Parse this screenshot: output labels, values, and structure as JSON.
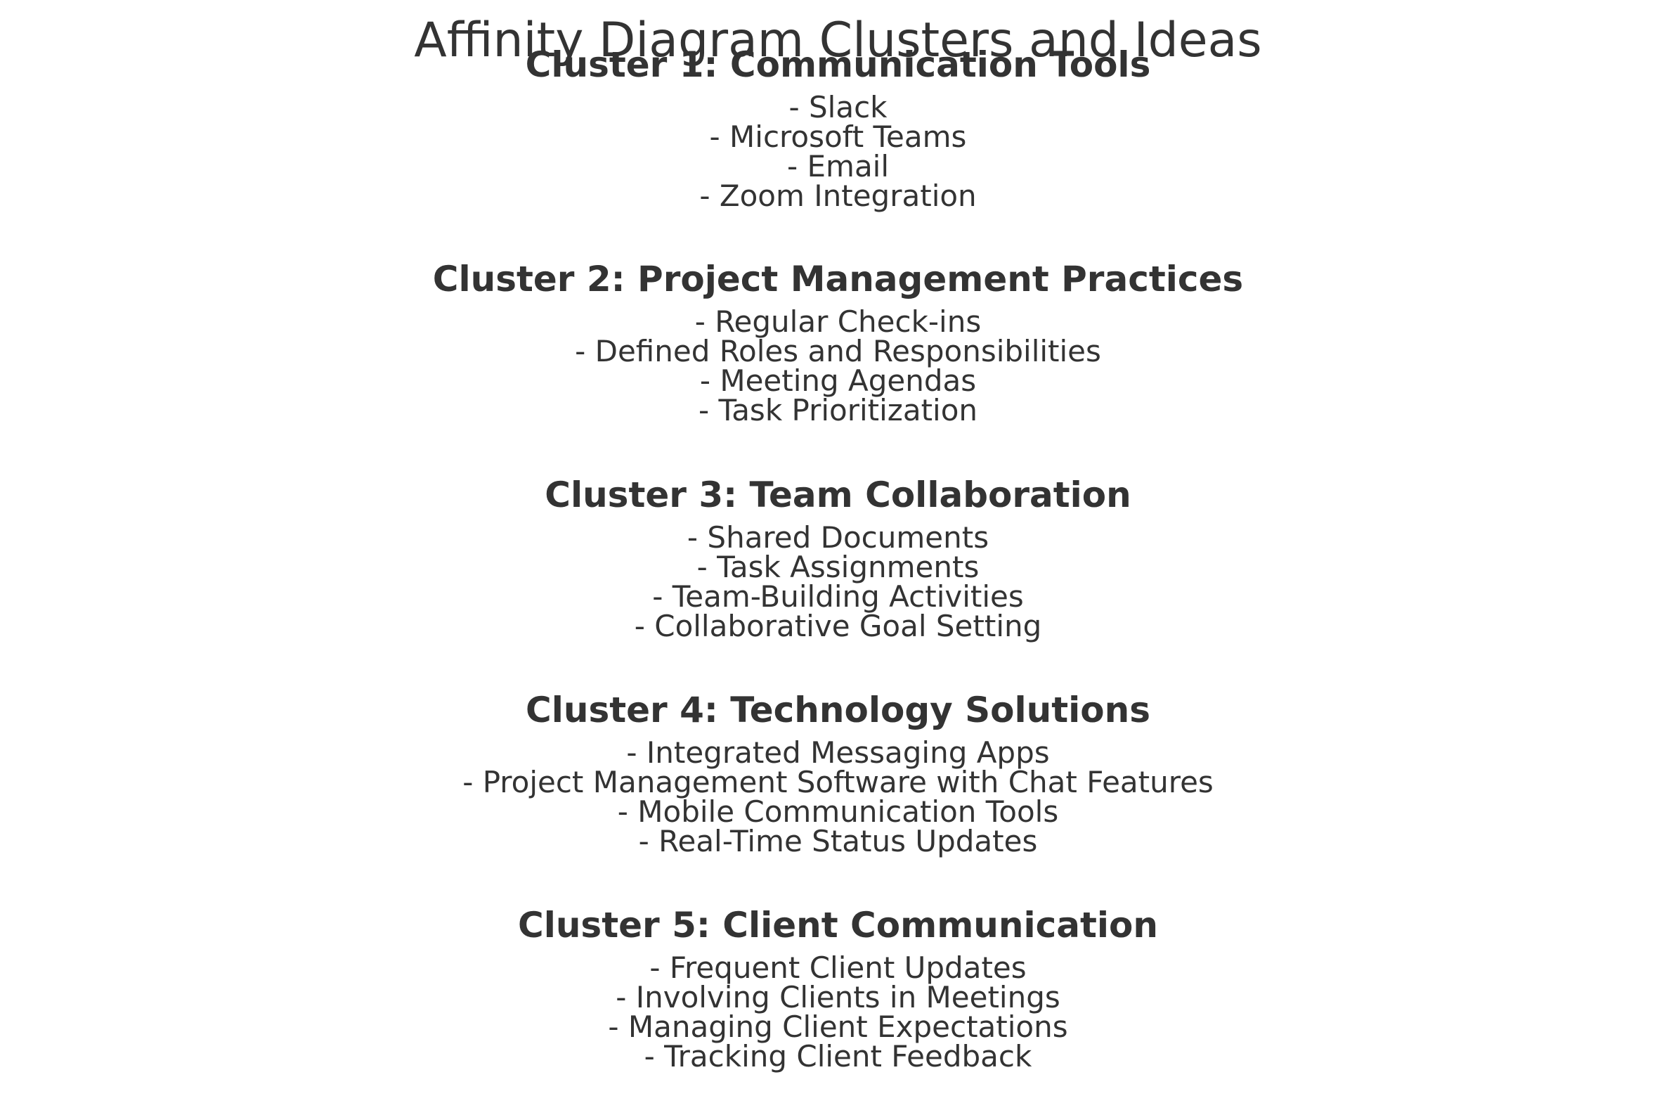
{
  "title": "Affinity Diagram Clusters and Ideas",
  "clusters": [
    {
      "heading": "Cluster 1: Communication Tools",
      "ideas": [
        "- Slack",
        "- Microsoft Teams",
        "- Email",
        "- Zoom Integration"
      ]
    },
    {
      "heading": "Cluster 2: Project Management Practices",
      "ideas": [
        "- Regular Check-ins",
        "- Defined Roles and Responsibilities",
        "- Meeting Agendas",
        "- Task Prioritization"
      ]
    },
    {
      "heading": "Cluster 3: Team Collaboration",
      "ideas": [
        "- Shared Documents",
        "- Task Assignments",
        "- Team-Building Activities",
        "- Collaborative Goal Setting"
      ]
    },
    {
      "heading": "Cluster 4: Technology Solutions",
      "ideas": [
        "- Integrated Messaging Apps",
        "- Project Management Software with Chat Features",
        "- Mobile Communication Tools",
        "- Real-Time Status Updates"
      ]
    },
    {
      "heading": "Cluster 5: Client Communication",
      "ideas": [
        "- Frequent Client Updates",
        "- Involving Clients in Meetings",
        "- Managing Client Expectations",
        "- Tracking Client Feedback"
      ]
    }
  ]
}
